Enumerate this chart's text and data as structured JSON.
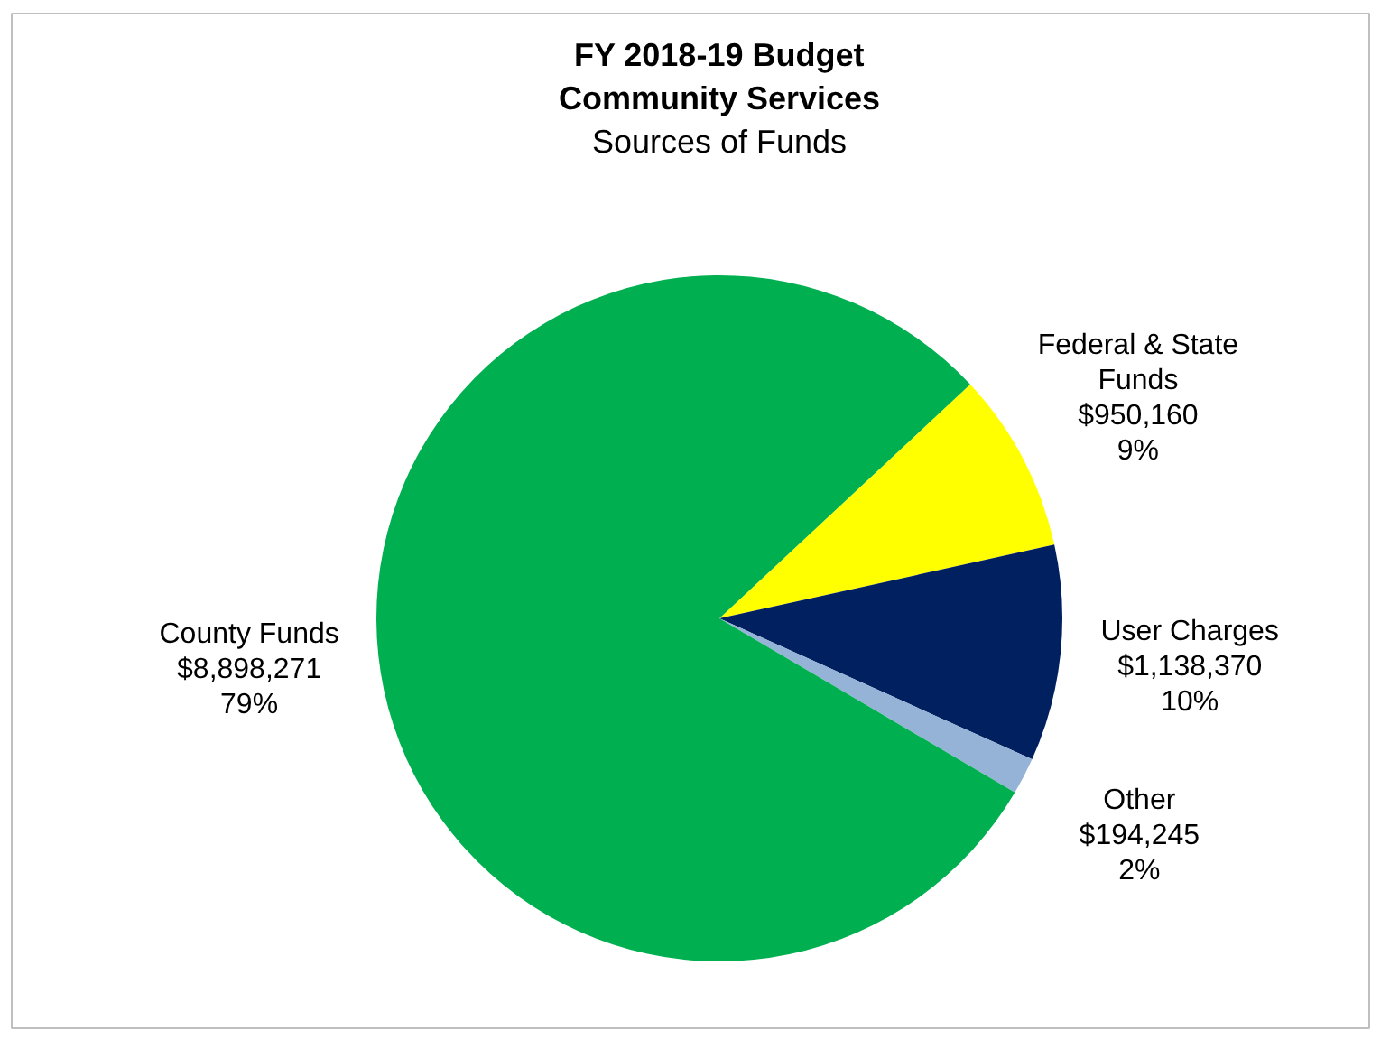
{
  "chart_data": {
    "type": "pie",
    "title": "FY 2018-19 Budget\nCommunity Services",
    "subtitle": "Sources of Funds",
    "categories": [
      "Federal & State Funds",
      "User Charges",
      "Other",
      "County Funds"
    ],
    "values": [
      950160,
      1138370,
      194245,
      8898271
    ],
    "colors": [
      "#ffff00",
      "#002060",
      "#95b3d7",
      "#00b050"
    ],
    "value_labels": [
      "$950,160\n9%",
      "$1,138,370\n10%",
      "$194,245\n2%",
      "$8,898,271\n79%"
    ]
  }
}
